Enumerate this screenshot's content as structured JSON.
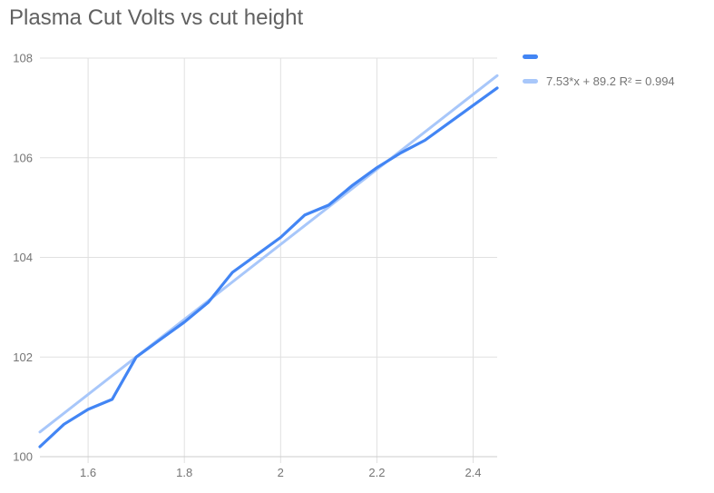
{
  "chart_data": {
    "type": "line",
    "title": "Plasma Cut Volts vs cut height",
    "x": [
      1.5,
      1.55,
      1.6,
      1.65,
      1.7,
      1.75,
      1.8,
      1.85,
      1.9,
      1.95,
      2.0,
      2.05,
      2.1,
      2.15,
      2.2,
      2.25,
      2.3,
      2.35,
      2.4,
      2.45
    ],
    "series": [
      {
        "name": "",
        "color": "#4285f4",
        "values": [
          100.2,
          100.65,
          100.95,
          101.15,
          102.0,
          102.35,
          102.7,
          103.1,
          103.7,
          104.05,
          104.4,
          104.85,
          105.05,
          105.45,
          105.8,
          106.1,
          106.35,
          106.7,
          107.05,
          107.4
        ]
      }
    ],
    "trendline": {
      "label": "7.53*x + 89.2 R² = 0.994",
      "slope": 7.53,
      "intercept": 89.2,
      "r_squared": 0.994,
      "color": "#a8c7fa",
      "x_range": [
        1.5,
        2.45
      ]
    },
    "xlim": [
      1.5,
      2.45
    ],
    "ylim": [
      100,
      108
    ],
    "x_ticks": {
      "values": [
        1.6,
        1.8,
        2.0,
        2.2,
        2.4
      ],
      "labels": [
        "1.6",
        "1.8",
        "2",
        "2.2",
        "2.4"
      ]
    },
    "y_ticks": {
      "values": [
        100,
        102,
        104,
        106,
        108
      ],
      "labels": [
        "100",
        "102",
        "104",
        "106",
        "108"
      ]
    },
    "grid": true,
    "legend_position": "right-top",
    "grid_color": "#e0e0e0",
    "baseline_color": "#cccccc",
    "tick_label_color": "#757575"
  }
}
